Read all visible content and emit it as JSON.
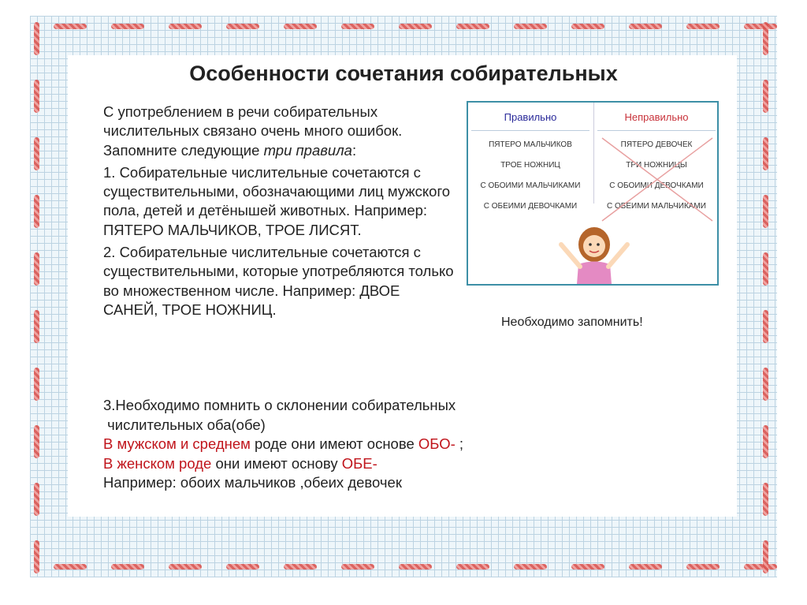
{
  "title": "Особенности сочетания собирательных",
  "intro": {
    "p1": "С употреблением в речи собирательных числительных связано очень много ошибок. Запомните следующие ",
    "p1_em": "три правила",
    "rule1": "1. Собирательные числительные сочетаются с существительными, обозначающими лиц мужского пола, детей и детёнышей животных. Например: ПЯТЕРО МАЛЬЧИКОВ, ТРОЕ ЛИСЯТ.",
    "rule2": "2. Собирательные числительные сочетаются с существительными, которые употребляются только во множественном числе. Например: ДВОЕ САНЕЙ, ТРОЕ НОЖНИЦ."
  },
  "rule3": {
    "l1": "3.Необходимо помнить о склонении собирательных",
    "l2": " числительных оба(обе)",
    "l3a": "В мужском и среднем",
    "l3b": " роде они имеют основе ",
    "l3c": "ОБО-",
    "l3d": " ;",
    "l4a": "В женском роде",
    "l4b": " они имеют основу ",
    "l4c": "ОБЕ-",
    "l5": "Например: обоих мальчиков ,обеих девочек"
  },
  "table": {
    "correct_header": "Правильно",
    "wrong_header": "Неправильно",
    "correct": [
      "ПЯТЕРО МАЛЬЧИКОВ",
      "ТРОЕ НОЖНИЦ",
      "С ОБОИМИ МАЛЬЧИКАМИ",
      "С ОБЕИМИ ДЕВОЧКАМИ"
    ],
    "wrong": [
      "ПЯТЕРО ДЕВОЧЕК",
      "ТРИ НОЖНИЦЫ",
      "С ОБОИМИ ДЕВОЧКАМИ",
      "С ОБЕИМИ МАЛЬЧИКАМИ"
    ]
  },
  "note": "Необходимо запомнить!",
  "colors": {
    "accent_red": "#c0141b",
    "correct_blue": "#2a2a9a",
    "wrong_red": "#c8323a",
    "frame": "#3d8fa6"
  }
}
